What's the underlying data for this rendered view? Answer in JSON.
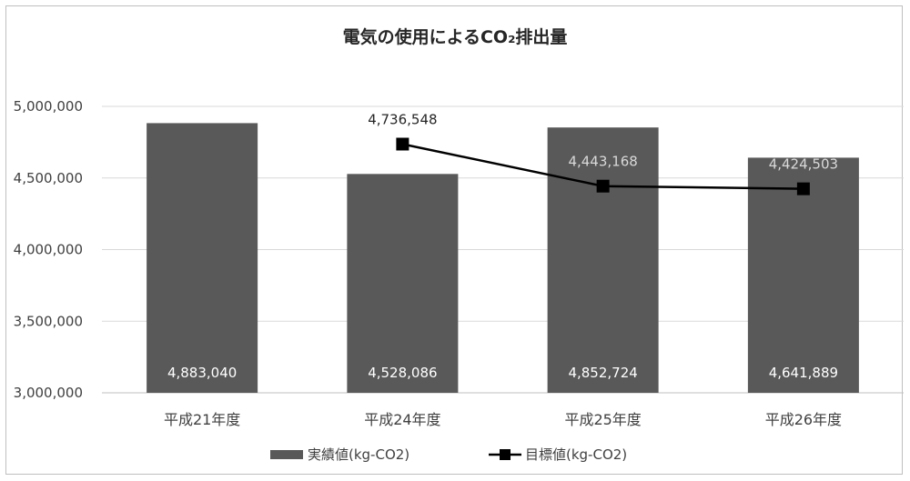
{
  "chart_data": {
    "type": "bar",
    "title": "電気の使用によるCO₂排出量",
    "categories": [
      "平成21年度",
      "平成24年度",
      "平成25年度",
      "平成26年度"
    ],
    "ylim": [
      3000000,
      5000000
    ],
    "yticks": [
      3000000,
      3500000,
      4000000,
      4500000,
      5000000
    ],
    "ytick_labels": [
      "3,000,000",
      "3,500,000",
      "4,000,000",
      "4,500,000",
      "5,000,000"
    ],
    "grid": true,
    "legend_position": "bottom",
    "series": [
      {
        "name": "実績値(kg-CO2)",
        "type": "bar",
        "color": "#595959",
        "values": [
          4883040,
          4528086,
          4852724,
          4641889
        ],
        "labels": [
          "4,883,040",
          "4,528,086",
          "4,852,724",
          "4,641,889"
        ]
      },
      {
        "name": "目標値(kg-CO2)",
        "type": "line",
        "marker": "square",
        "color": "#000000",
        "values": [
          null,
          4736548,
          4443168,
          4424503
        ],
        "labels": [
          "",
          "4,736,548",
          "4,443,168",
          "4,424,503"
        ]
      }
    ]
  }
}
